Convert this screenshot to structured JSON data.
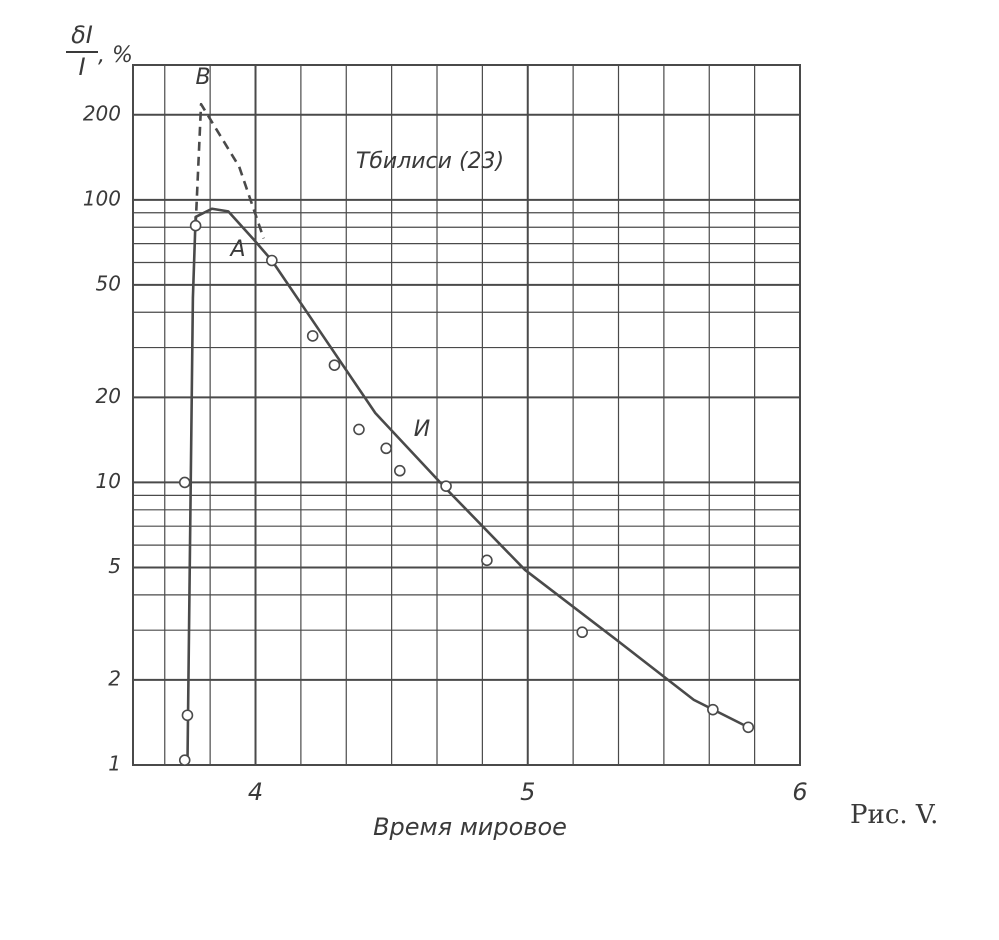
{
  "chart_data": {
    "type": "scatter",
    "y_label": {
      "numerator": "δI",
      "denominator": "I",
      "unit": ", %"
    },
    "x_label": "Время мировое",
    "caption": "Рис. V.",
    "annotations": [
      "B",
      "A",
      "И",
      "Тбилиси (23)"
    ],
    "log_y": true,
    "grid": true,
    "minor_grid": true,
    "color": "#4a4a4a",
    "xlim": [
      3.55,
      6.0
    ],
    "ylim": [
      1,
      300
    ],
    "xticks": [
      4,
      5,
      6
    ],
    "yticks": [
      1,
      2,
      5,
      10,
      20,
      50,
      100,
      200
    ],
    "series": [
      {
        "style": "points",
        "x": [
          3.74,
          3.75,
          3.74,
          3.78,
          4.06,
          4.21,
          4.29,
          4.38,
          4.48,
          4.53,
          4.7,
          4.85,
          5.2,
          5.68,
          5.81
        ],
        "values": [
          1.04,
          1.5,
          10,
          81,
          61,
          33,
          26,
          15.4,
          13.2,
          11,
          9.7,
          5.3,
          2.95,
          1.57,
          1.36
        ]
      },
      {
        "style": "solid",
        "x": [
          3.75,
          3.77,
          3.78,
          3.84,
          3.9,
          3.99,
          4.06,
          4.23,
          4.44,
          4.7,
          4.99,
          5.32,
          5.61,
          5.81
        ],
        "values": [
          1.0,
          45,
          87,
          93,
          91,
          73,
          61,
          35,
          17.6,
          9.5,
          4.9,
          2.8,
          1.7,
          1.36
        ]
      },
      {
        "style": "dashed",
        "x": [
          3.78,
          3.8,
          3.94,
          4.03
        ],
        "values": [
          81,
          218,
          131,
          73
        ]
      }
    ]
  }
}
